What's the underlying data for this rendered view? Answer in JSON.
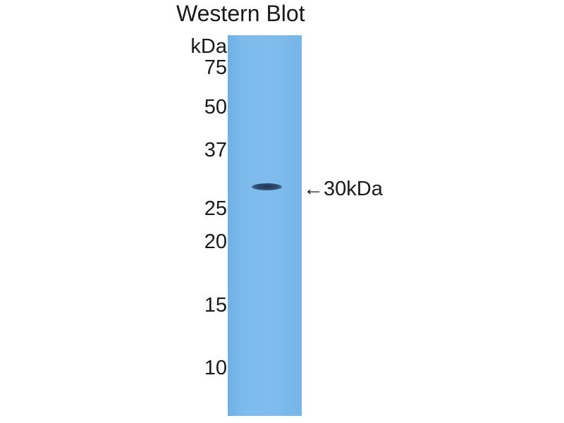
{
  "title": "Western Blot",
  "unit_label": "kDa",
  "ladder": [
    "75",
    "50",
    "37",
    "25",
    "20",
    "15",
    "10"
  ],
  "band_marker": "←30kDa",
  "colors": {
    "membrane": "#7dbbec",
    "band": "#2d4d70"
  }
}
